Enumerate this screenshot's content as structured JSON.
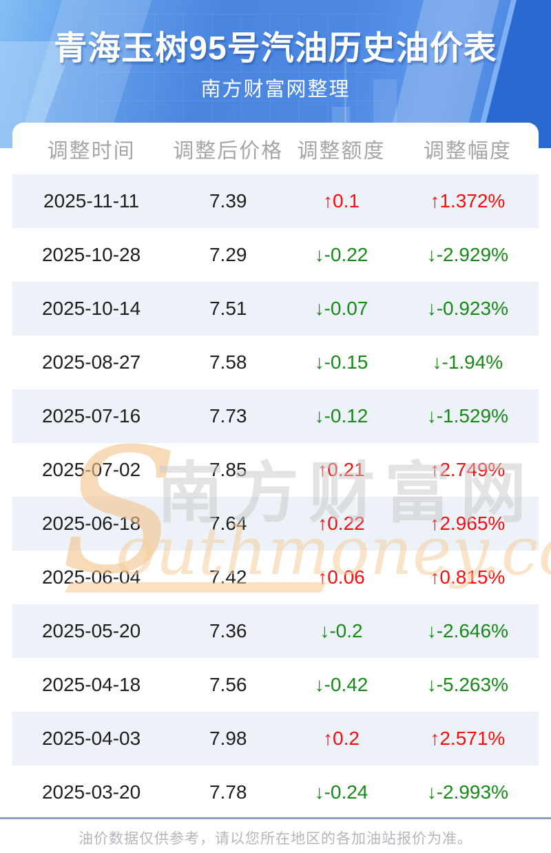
{
  "header": {
    "title": "青海玉树95号汽油历史油价表",
    "subtitle": "南方财富网整理"
  },
  "table": {
    "columns": [
      "调整时间",
      "调整后价格",
      "调整额度",
      "调整幅度"
    ],
    "rows": [
      {
        "date": "2025-11-11",
        "price": "7.39",
        "change": "↑0.1",
        "pct": "↑1.372%",
        "direction": "up"
      },
      {
        "date": "2025-10-28",
        "price": "7.29",
        "change": "↓-0.22",
        "pct": "↓-2.929%",
        "direction": "down"
      },
      {
        "date": "2025-10-14",
        "price": "7.51",
        "change": "↓-0.07",
        "pct": "↓-0.923%",
        "direction": "down"
      },
      {
        "date": "2025-08-27",
        "price": "7.58",
        "change": "↓-0.15",
        "pct": "↓-1.94%",
        "direction": "down"
      },
      {
        "date": "2025-07-16",
        "price": "7.73",
        "change": "↓-0.12",
        "pct": "↓-1.529%",
        "direction": "down"
      },
      {
        "date": "2025-07-02",
        "price": "7.85",
        "change": "↑0.21",
        "pct": "↑2.749%",
        "direction": "up"
      },
      {
        "date": "2025-06-18",
        "price": "7.64",
        "change": "↑0.22",
        "pct": "↑2.965%",
        "direction": "up"
      },
      {
        "date": "2025-06-04",
        "price": "7.42",
        "change": "↑0.06",
        "pct": "↑0.815%",
        "direction": "up"
      },
      {
        "date": "2025-05-20",
        "price": "7.36",
        "change": "↓-0.2",
        "pct": "↓-2.646%",
        "direction": "down"
      },
      {
        "date": "2025-04-18",
        "price": "7.56",
        "change": "↓-0.42",
        "pct": "↓-5.263%",
        "direction": "down"
      },
      {
        "date": "2025-04-03",
        "price": "7.98",
        "change": "↑0.2",
        "pct": "↑2.571%",
        "direction": "up"
      },
      {
        "date": "2025-03-20",
        "price": "7.78",
        "change": "↓-0.24",
        "pct": "↓-2.993%",
        "direction": "down"
      }
    ]
  },
  "watermark": {
    "initial": "S",
    "cn": "南方财富网",
    "en": "outhmoney.com"
  },
  "footer": {
    "note": "油价数据仅供参考，请以您所在地区的各加油站报价为准。"
  },
  "colors": {
    "up": "#fb0b0b",
    "down": "#178917",
    "header_accent": "#4a86df",
    "zebra_row": "#edf2f9",
    "divider": "#8aa2c0"
  }
}
